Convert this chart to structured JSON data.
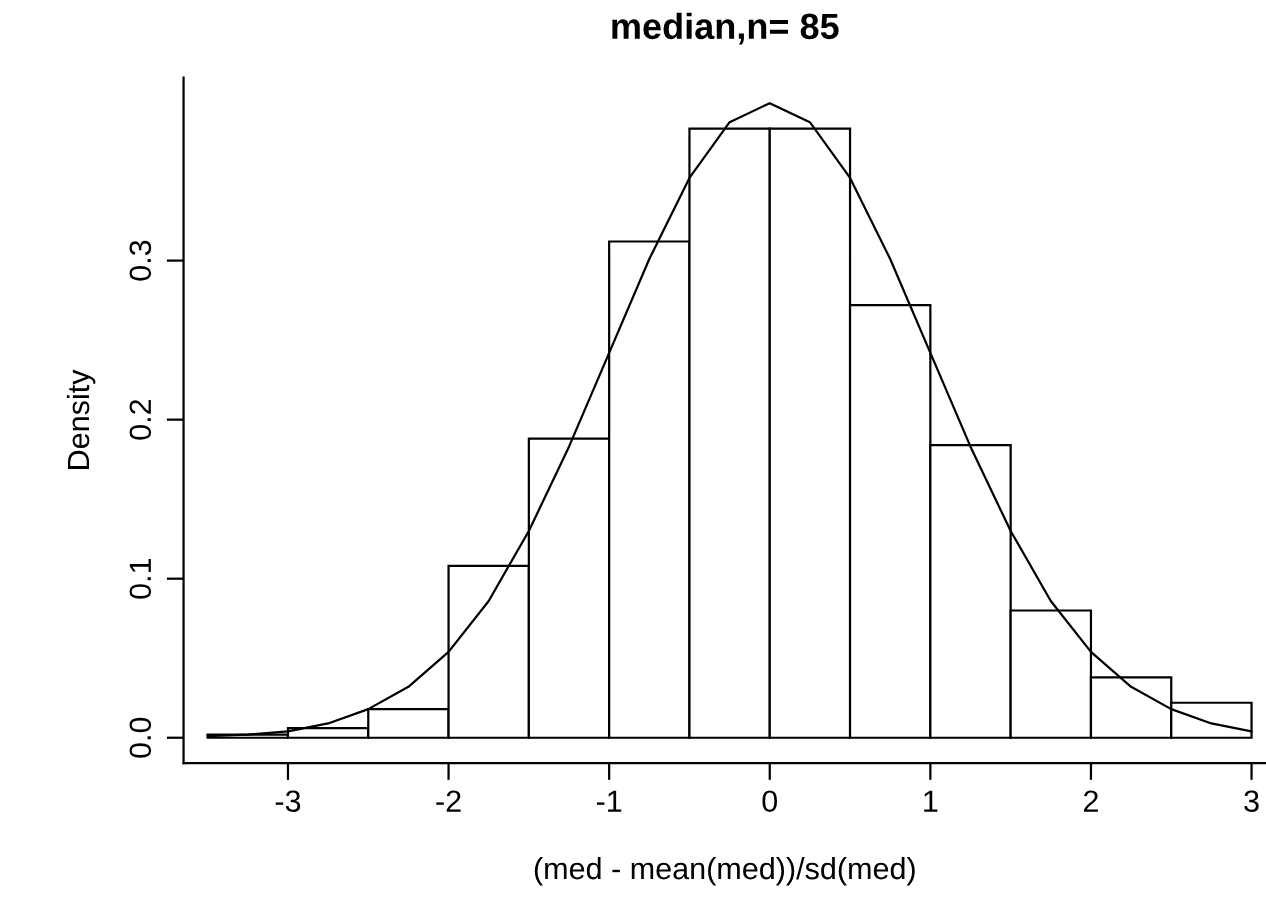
{
  "chart_data": {
    "type": "histogram",
    "title": "median,n= 85",
    "xlabel": "(med - mean(med))/sd(med)",
    "ylabel": "Density",
    "bins": [
      -3.5,
      -3.0,
      -2.5,
      -2.0,
      -1.5,
      -1.0,
      -0.5,
      0.0,
      0.5,
      1.0,
      1.5,
      2.0,
      2.5,
      3.0
    ],
    "values": [
      0.002,
      0.006,
      0.018,
      0.108,
      0.188,
      0.312,
      0.383,
      0.383,
      0.272,
      0.184,
      0.08,
      0.038,
      0.022
    ],
    "color": "#ffffff",
    "series": [
      {
        "type": "line",
        "color": "#000000",
        "x": [
          -3.5,
          -3.25,
          -3.0,
          -2.75,
          -2.5,
          -2.25,
          -2.0,
          -1.75,
          -1.5,
          -1.25,
          -1.0,
          -0.75,
          -0.5,
          -0.25,
          0.0,
          0.25,
          0.5,
          0.75,
          1.0,
          1.25,
          1.5,
          1.75,
          2.0,
          2.25,
          2.5,
          2.75,
          3.0
        ],
        "values": [
          0.001,
          0.002,
          0.004,
          0.009,
          0.018,
          0.032,
          0.054,
          0.086,
          0.13,
          0.183,
          0.242,
          0.301,
          0.352,
          0.387,
          0.399,
          0.387,
          0.352,
          0.301,
          0.242,
          0.183,
          0.13,
          0.086,
          0.054,
          0.032,
          0.018,
          0.009,
          0.004
        ]
      }
    ],
    "xlim": [
      -3.65,
      3.09
    ],
    "ylim": [
      -0.016,
      0.415
    ],
    "xticks": [
      {
        "value": -3,
        "label": "-3"
      },
      {
        "value": -2,
        "label": "-2"
      },
      {
        "value": -1,
        "label": "-1"
      },
      0,
      1,
      2,
      3
    ],
    "yticks": [
      {
        "value": 0,
        "label": "0.0"
      },
      0.1,
      0.2,
      0.3
    ],
    "grid": false,
    "legend": false
  }
}
